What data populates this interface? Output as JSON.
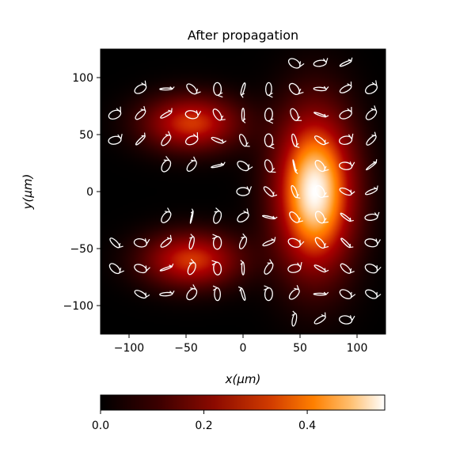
{
  "chart_data": {
    "type": "heatmap",
    "title": "After propagation",
    "xlabel": "x(μm)",
    "ylabel": "y(μm)",
    "xlim": [
      -125,
      125
    ],
    "ylim": [
      -125,
      125
    ],
    "x_ticks": [
      -100,
      -50,
      0,
      50,
      100
    ],
    "y_ticks": [
      -100,
      -50,
      0,
      50,
      100
    ],
    "colormap": "gist_heat",
    "colorbar": {
      "orientation": "horizontal",
      "placement": "bottom",
      "range": [
        0.0,
        0.55
      ],
      "ticks": [
        0.0,
        0.2,
        0.4
      ],
      "tick_labels": [
        "0.0",
        "0.2",
        "0.4"
      ]
    },
    "intensity_peaks": [
      {
        "x": 63,
        "y": 0,
        "sigma_x": 24,
        "sigma_y": 48,
        "value": 0.55
      },
      {
        "x": -45,
        "y": 60,
        "sigma_x": 30,
        "sigma_y": 17,
        "value": 0.32
      },
      {
        "x": -45,
        "y": -60,
        "sigma_x": 30,
        "sigma_y": 17,
        "value": 0.32
      }
    ],
    "polarization_overlay": {
      "color": "#ffffff",
      "grid_step": 22.5,
      "grid_x_range": [
        -112.5,
        112.5
      ],
      "grid_y_range": [
        -112.5,
        112.5
      ],
      "marker": "polarization ellipses with direction arrows"
    }
  }
}
